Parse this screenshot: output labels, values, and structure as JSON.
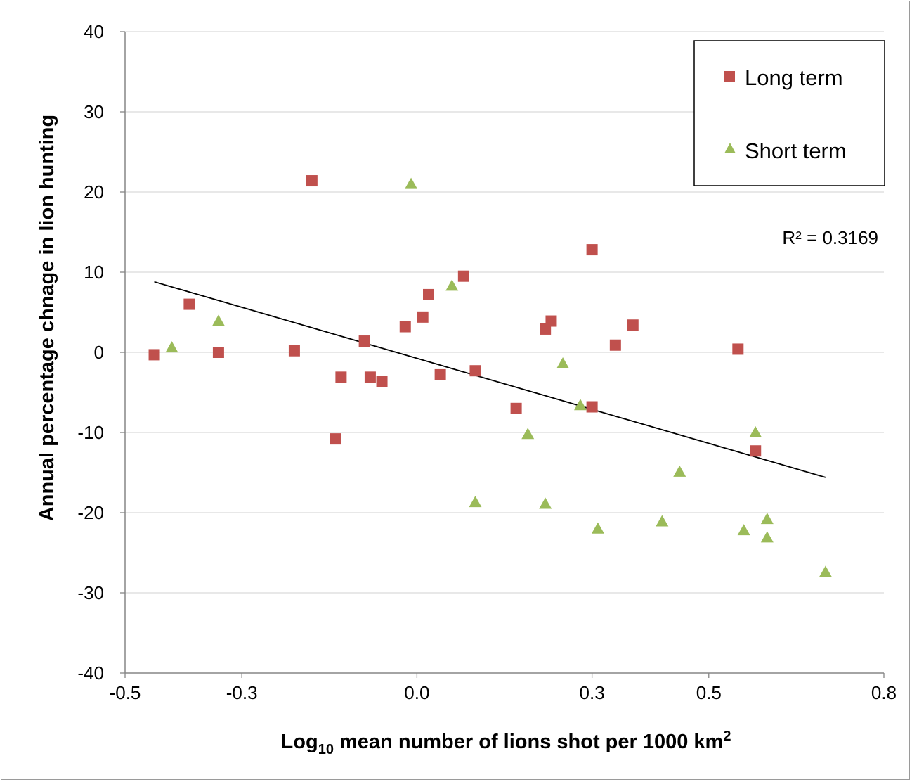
{
  "chart_data": {
    "type": "scatter",
    "xlabel": {
      "prefix": "Log",
      "sub": "10",
      "rest": " mean number of lions shot per 1000 km",
      "sup": "2"
    },
    "ylabel": "Annual percentage chnage in lion hunting",
    "xlim": [
      -0.5,
      0.8
    ],
    "ylim": [
      -40,
      40
    ],
    "x_ticks": [
      -0.5,
      -0.3,
      0.0,
      0.3,
      0.5,
      0.8
    ],
    "x_tick_labels": [
      "-0.5",
      "-0.3",
      "0.0",
      "0.3",
      "0.5",
      "0.8"
    ],
    "y_ticks": [
      40,
      30,
      20,
      10,
      0,
      -10,
      -20,
      -30,
      -40
    ],
    "y_tick_labels": [
      "40",
      "30",
      "20",
      "10",
      "0",
      "-10",
      "-20",
      "-30",
      "-40"
    ],
    "grid": "horizontal",
    "legend_position": "top-right",
    "annotation": "R² = 0.3169",
    "trendline": {
      "x": [
        -0.45,
        0.7
      ],
      "y": [
        8.8,
        -15.6
      ]
    },
    "series": [
      {
        "name": "Long term",
        "marker": "square",
        "color": "#c0504d",
        "points": [
          [
            -0.45,
            -0.3
          ],
          [
            -0.39,
            6.0
          ],
          [
            -0.34,
            0.0
          ],
          [
            -0.21,
            0.2
          ],
          [
            -0.18,
            21.4
          ],
          [
            -0.14,
            -10.8
          ],
          [
            -0.13,
            -3.1
          ],
          [
            -0.09,
            1.4
          ],
          [
            -0.08,
            -3.1
          ],
          [
            -0.06,
            -3.6
          ],
          [
            -0.02,
            3.2
          ],
          [
            0.01,
            4.4
          ],
          [
            0.02,
            7.2
          ],
          [
            0.04,
            -2.8
          ],
          [
            0.08,
            9.5
          ],
          [
            0.1,
            -2.3
          ],
          [
            0.17,
            -7.0
          ],
          [
            0.22,
            2.9
          ],
          [
            0.23,
            3.9
          ],
          [
            0.3,
            12.8
          ],
          [
            0.3,
            -6.8
          ],
          [
            0.34,
            0.9
          ],
          [
            0.37,
            3.4
          ],
          [
            0.55,
            0.4
          ],
          [
            0.58,
            -12.3
          ]
        ]
      },
      {
        "name": "Short term",
        "marker": "triangle",
        "color": "#9bbb59",
        "points": [
          [
            -0.42,
            0.6
          ],
          [
            -0.34,
            3.9
          ],
          [
            -0.01,
            21.0
          ],
          [
            0.06,
            8.3
          ],
          [
            0.1,
            -18.7
          ],
          [
            0.19,
            -10.2
          ],
          [
            0.22,
            -18.9
          ],
          [
            0.25,
            -1.4
          ],
          [
            0.28,
            -6.6
          ],
          [
            0.31,
            -22.0
          ],
          [
            0.42,
            -21.1
          ],
          [
            0.45,
            -14.9
          ],
          [
            0.56,
            -22.2
          ],
          [
            0.58,
            -10.0
          ],
          [
            0.6,
            -23.1
          ],
          [
            0.6,
            -20.8
          ],
          [
            0.7,
            -27.4
          ]
        ]
      }
    ]
  }
}
